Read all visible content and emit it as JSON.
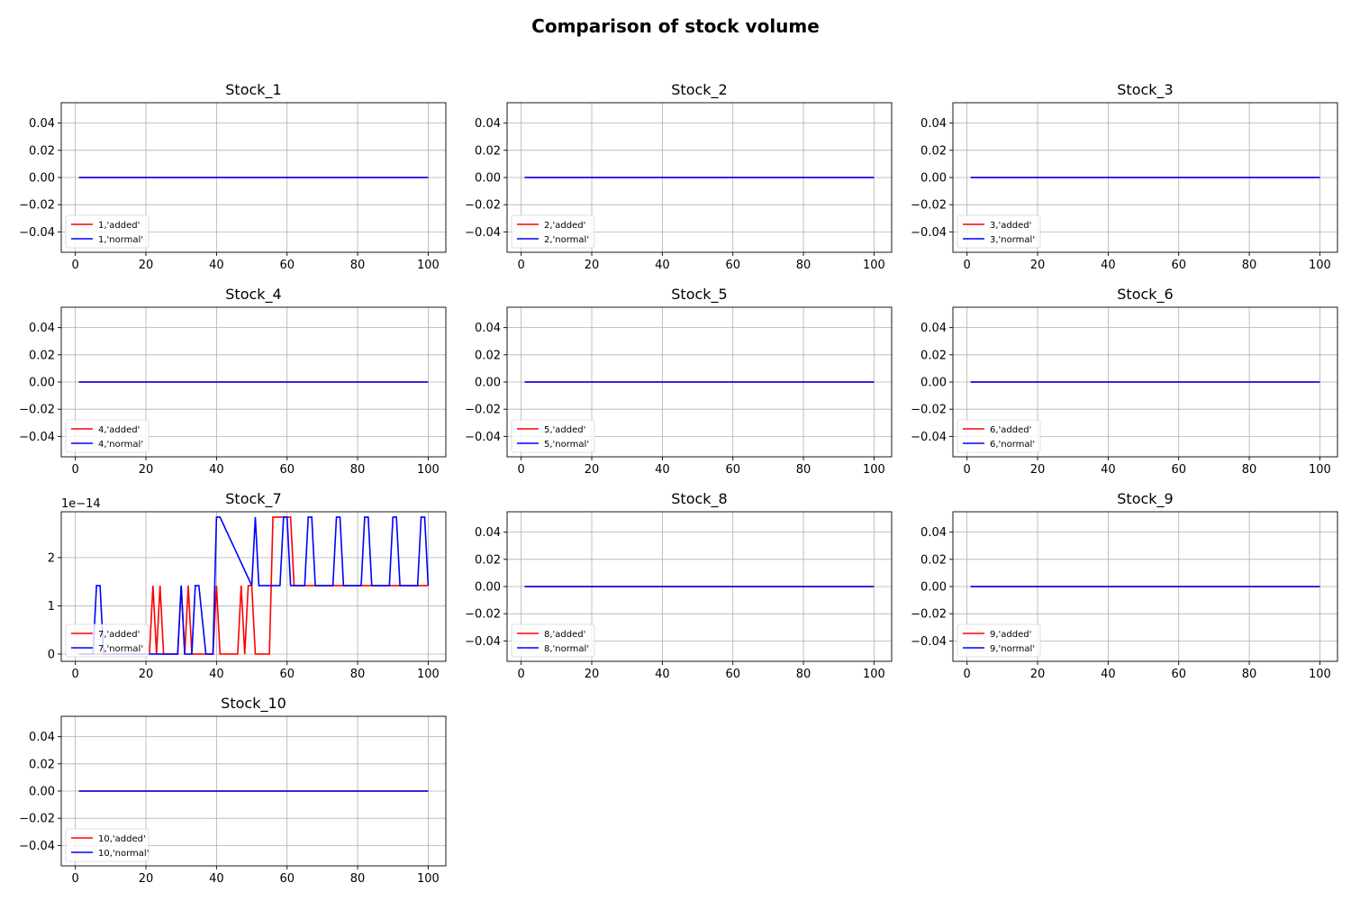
{
  "figure": {
    "title": "Comparison of stock volume"
  },
  "colors": {
    "added": "#ff0000",
    "normal": "#0000ff",
    "grid": "#b0b0b0",
    "axis": "#000000"
  },
  "chart_data": [
    {
      "type": "line",
      "title": "Stock_1",
      "xlim": [
        -4,
        105
      ],
      "ylim": [
        -0.055,
        0.055
      ],
      "xticks": [
        0,
        20,
        40,
        60,
        80,
        100
      ],
      "yticks": [
        -0.04,
        -0.02,
        0.0,
        0.02,
        0.04
      ],
      "ytick_labels": [
        "−0.04",
        "−0.02",
        "0.00",
        "0.02",
        "0.04"
      ],
      "grid": true,
      "legend": "lower-left",
      "series": [
        {
          "name": "1,'added'",
          "color": "red",
          "x": [
            1,
            100
          ],
          "y": [
            0,
            0
          ]
        },
        {
          "name": "1,'normal'",
          "color": "blue",
          "x": [
            1,
            100
          ],
          "y": [
            0,
            0
          ]
        }
      ]
    },
    {
      "type": "line",
      "title": "Stock_2",
      "xlim": [
        -4,
        105
      ],
      "ylim": [
        -0.055,
        0.055
      ],
      "xticks": [
        0,
        20,
        40,
        60,
        80,
        100
      ],
      "yticks": [
        -0.04,
        -0.02,
        0.0,
        0.02,
        0.04
      ],
      "ytick_labels": [
        "−0.04",
        "−0.02",
        "0.00",
        "0.02",
        "0.04"
      ],
      "grid": true,
      "legend": "lower-left",
      "series": [
        {
          "name": "2,'added'",
          "color": "red",
          "x": [
            1,
            100
          ],
          "y": [
            0,
            0
          ]
        },
        {
          "name": "2,'normal'",
          "color": "blue",
          "x": [
            1,
            100
          ],
          "y": [
            0,
            0
          ]
        }
      ]
    },
    {
      "type": "line",
      "title": "Stock_3",
      "xlim": [
        -4,
        105
      ],
      "ylim": [
        -0.055,
        0.055
      ],
      "xticks": [
        0,
        20,
        40,
        60,
        80,
        100
      ],
      "yticks": [
        -0.04,
        -0.02,
        0.0,
        0.02,
        0.04
      ],
      "ytick_labels": [
        "−0.04",
        "−0.02",
        "0.00",
        "0.02",
        "0.04"
      ],
      "grid": true,
      "legend": "lower-left",
      "series": [
        {
          "name": "3,'added'",
          "color": "red",
          "x": [
            1,
            100
          ],
          "y": [
            0,
            0
          ]
        },
        {
          "name": "3,'normal'",
          "color": "blue",
          "x": [
            1,
            100
          ],
          "y": [
            0,
            0
          ]
        }
      ]
    },
    {
      "type": "line",
      "title": "Stock_4",
      "xlim": [
        -4,
        105
      ],
      "ylim": [
        -0.055,
        0.055
      ],
      "xticks": [
        0,
        20,
        40,
        60,
        80,
        100
      ],
      "yticks": [
        -0.04,
        -0.02,
        0.0,
        0.02,
        0.04
      ],
      "ytick_labels": [
        "−0.04",
        "−0.02",
        "0.00",
        "0.02",
        "0.04"
      ],
      "grid": true,
      "legend": "lower-left",
      "series": [
        {
          "name": "4,'added'",
          "color": "red",
          "x": [
            1,
            100
          ],
          "y": [
            0,
            0
          ]
        },
        {
          "name": "4,'normal'",
          "color": "blue",
          "x": [
            1,
            100
          ],
          "y": [
            0,
            0
          ]
        }
      ]
    },
    {
      "type": "line",
      "title": "Stock_5",
      "xlim": [
        -4,
        105
      ],
      "ylim": [
        -0.055,
        0.055
      ],
      "xticks": [
        0,
        20,
        40,
        60,
        80,
        100
      ],
      "yticks": [
        -0.04,
        -0.02,
        0.0,
        0.02,
        0.04
      ],
      "ytick_labels": [
        "−0.04",
        "−0.02",
        "0.00",
        "0.02",
        "0.04"
      ],
      "grid": true,
      "legend": "lower-left",
      "series": [
        {
          "name": "5,'added'",
          "color": "red",
          "x": [
            1,
            100
          ],
          "y": [
            0,
            0
          ]
        },
        {
          "name": "5,'normal'",
          "color": "blue",
          "x": [
            1,
            100
          ],
          "y": [
            0,
            0
          ]
        }
      ]
    },
    {
      "type": "line",
      "title": "Stock_6",
      "xlim": [
        -4,
        105
      ],
      "ylim": [
        -0.055,
        0.055
      ],
      "xticks": [
        0,
        20,
        40,
        60,
        80,
        100
      ],
      "yticks": [
        -0.04,
        -0.02,
        0.0,
        0.02,
        0.04
      ],
      "ytick_labels": [
        "−0.04",
        "−0.02",
        "0.00",
        "0.02",
        "0.04"
      ],
      "grid": true,
      "legend": "lower-left",
      "series": [
        {
          "name": "6,'added'",
          "color": "red",
          "x": [
            1,
            100
          ],
          "y": [
            0,
            0
          ]
        },
        {
          "name": "6,'normal'",
          "color": "blue",
          "x": [
            1,
            100
          ],
          "y": [
            0,
            0
          ]
        }
      ]
    },
    {
      "type": "line",
      "title": "Stock_7",
      "xlim": [
        -4,
        105
      ],
      "ylim": [
        -0.15,
        2.95
      ],
      "xticks": [
        0,
        20,
        40,
        60,
        80,
        100
      ],
      "yticks": [
        0,
        1,
        2
      ],
      "ytick_labels": [
        "0",
        "1",
        "2"
      ],
      "y_offset_label": "1e−14",
      "grid": true,
      "legend": "lower-left",
      "series": [
        {
          "name": "7,'added'",
          "color": "red",
          "x": [
            1,
            21,
            22,
            23,
            24,
            25,
            29,
            30,
            31,
            32,
            33,
            39,
            40,
            41,
            46,
            47,
            48,
            49,
            50,
            51,
            55,
            56,
            57,
            61,
            62,
            100
          ],
          "y": [
            0,
            0,
            1.42,
            0,
            1.42,
            0,
            0,
            1.42,
            0,
            1.42,
            0,
            0,
            1.42,
            0,
            0,
            1.42,
            0,
            1.42,
            1.42,
            0,
            0,
            2.84,
            2.84,
            2.84,
            1.42,
            1.42
          ]
        },
        {
          "name": "7,'normal'",
          "color": "blue",
          "x": [
            1,
            5,
            6,
            7,
            8,
            28,
            29,
            30,
            31,
            33,
            34,
            35,
            37,
            39,
            40,
            41,
            50,
            51,
            52,
            58,
            59,
            60,
            61,
            65,
            66,
            67,
            68,
            73,
            74,
            75,
            76,
            81,
            82,
            83,
            84,
            89,
            90,
            91,
            92,
            97,
            98,
            99,
            100
          ],
          "y": [
            0,
            0,
            1.42,
            1.42,
            0,
            0,
            0,
            1.42,
            0,
            0,
            1.42,
            1.42,
            0,
            0,
            2.84,
            2.84,
            1.42,
            2.84,
            1.42,
            1.42,
            2.84,
            2.84,
            1.42,
            1.42,
            2.84,
            2.84,
            1.42,
            1.42,
            2.84,
            2.84,
            1.42,
            1.42,
            2.84,
            2.84,
            1.42,
            1.42,
            2.84,
            2.84,
            1.42,
            1.42,
            2.84,
            2.84,
            1.42
          ]
        }
      ]
    },
    {
      "type": "line",
      "title": "Stock_8",
      "xlim": [
        -4,
        105
      ],
      "ylim": [
        -0.055,
        0.055
      ],
      "xticks": [
        0,
        20,
        40,
        60,
        80,
        100
      ],
      "yticks": [
        -0.04,
        -0.02,
        0.0,
        0.02,
        0.04
      ],
      "ytick_labels": [
        "−0.04",
        "−0.02",
        "0.00",
        "0.02",
        "0.04"
      ],
      "grid": true,
      "legend": "lower-left",
      "series": [
        {
          "name": "8,'added'",
          "color": "red",
          "x": [
            1,
            100
          ],
          "y": [
            0,
            0
          ]
        },
        {
          "name": "8,'normal'",
          "color": "blue",
          "x": [
            1,
            100
          ],
          "y": [
            0,
            0
          ]
        }
      ]
    },
    {
      "type": "line",
      "title": "Stock_9",
      "xlim": [
        -4,
        105
      ],
      "ylim": [
        -0.055,
        0.055
      ],
      "xticks": [
        0,
        20,
        40,
        60,
        80,
        100
      ],
      "yticks": [
        -0.04,
        -0.02,
        0.0,
        0.02,
        0.04
      ],
      "ytick_labels": [
        "−0.04",
        "−0.02",
        "0.00",
        "0.02",
        "0.04"
      ],
      "grid": true,
      "legend": "lower-left",
      "series": [
        {
          "name": "9,'added'",
          "color": "red",
          "x": [
            1,
            100
          ],
          "y": [
            0,
            0
          ]
        },
        {
          "name": "9,'normal'",
          "color": "blue",
          "x": [
            1,
            100
          ],
          "y": [
            0,
            0
          ]
        }
      ]
    },
    {
      "type": "line",
      "title": "Stock_10",
      "xlim": [
        -4,
        105
      ],
      "ylim": [
        -0.055,
        0.055
      ],
      "xticks": [
        0,
        20,
        40,
        60,
        80,
        100
      ],
      "yticks": [
        -0.04,
        -0.02,
        0.0,
        0.02,
        0.04
      ],
      "ytick_labels": [
        "−0.04",
        "−0.02",
        "0.00",
        "0.02",
        "0.04"
      ],
      "grid": true,
      "legend": "lower-left",
      "series": [
        {
          "name": "10,'added'",
          "color": "red",
          "x": [
            1,
            100
          ],
          "y": [
            0,
            0
          ]
        },
        {
          "name": "10,'normal'",
          "color": "blue",
          "x": [
            1,
            100
          ],
          "y": [
            0,
            0
          ]
        }
      ]
    }
  ]
}
